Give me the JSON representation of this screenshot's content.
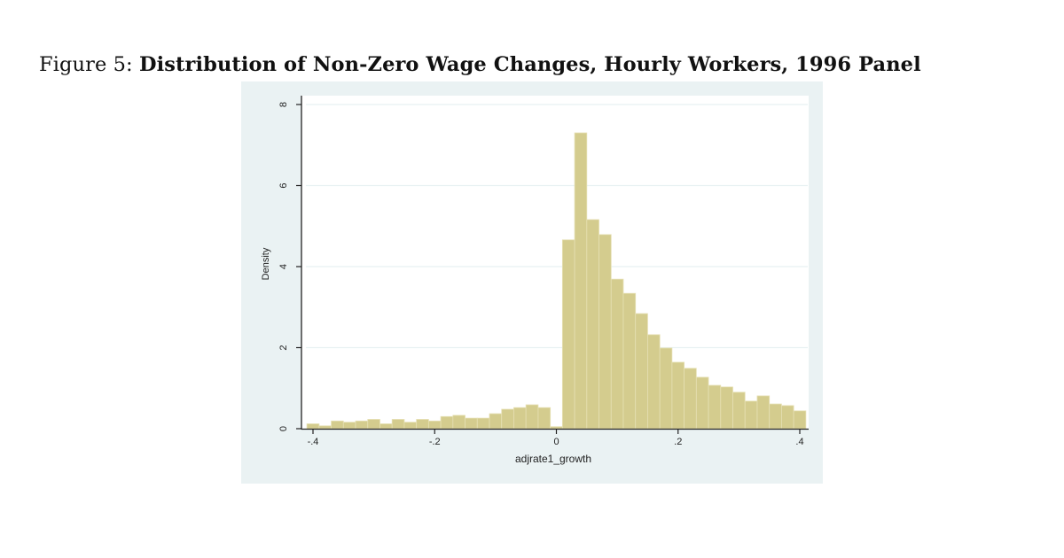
{
  "figure": {
    "label": "Figure 5:",
    "title": "Distribution of Non-Zero Wage Changes, Hourly Workers, 1996 Panel"
  },
  "colors": {
    "bar_fill": "#d4cc8e",
    "bar_edge": "#e6e0b4",
    "panel_bg": "#eaf2f3",
    "plot_bg": "#ffffff",
    "gridline": "#e8f1f2",
    "axis": "#222222"
  },
  "chart_data": {
    "type": "bar",
    "title": "Distribution of Non-Zero Wage Changes, Hourly Workers, 1996 Panel",
    "xlabel": "adjrate1_growth",
    "ylabel": "Density",
    "xlim": [
      -0.4,
      0.4
    ],
    "ylim": [
      0,
      8
    ],
    "grid": true,
    "x_ticks": [
      {
        "value": -0.4,
        "label": "-.4"
      },
      {
        "value": -0.2,
        "label": "-.2"
      },
      {
        "value": 0,
        "label": "0"
      },
      {
        "value": 0.2,
        "label": ".2"
      },
      {
        "value": 0.4,
        "label": ".4"
      }
    ],
    "y_ticks": [
      {
        "value": 0,
        "label": "0"
      },
      {
        "value": 2,
        "label": "2"
      },
      {
        "value": 4,
        "label": "4"
      },
      {
        "value": 6,
        "label": "6"
      },
      {
        "value": 8,
        "label": "8"
      }
    ],
    "bin_width": 0.02,
    "bin_starts": [
      -0.41,
      -0.39,
      -0.37,
      -0.35,
      -0.33,
      -0.31,
      -0.29,
      -0.27,
      -0.25,
      -0.23,
      -0.21,
      -0.19,
      -0.17,
      -0.15,
      -0.13,
      -0.11,
      -0.09,
      -0.07,
      -0.05,
      -0.03,
      -0.01,
      0.01,
      0.03,
      0.05,
      0.07,
      0.09,
      0.11,
      0.13,
      0.15,
      0.17,
      0.19,
      0.21,
      0.23,
      0.25,
      0.27,
      0.29,
      0.31,
      0.33,
      0.35,
      0.37,
      0.39
    ],
    "values": [
      0.12,
      0.07,
      0.19,
      0.16,
      0.19,
      0.23,
      0.12,
      0.23,
      0.16,
      0.23,
      0.19,
      0.3,
      0.33,
      0.26,
      0.26,
      0.37,
      0.48,
      0.52,
      0.59,
      0.52,
      0.05,
      4.66,
      7.3,
      5.16,
      4.79,
      3.69,
      3.34,
      2.84,
      2.32,
      1.99,
      1.64,
      1.49,
      1.27,
      1.07,
      1.03,
      0.9,
      0.68,
      0.81,
      0.61,
      0.57,
      0.44
    ]
  }
}
